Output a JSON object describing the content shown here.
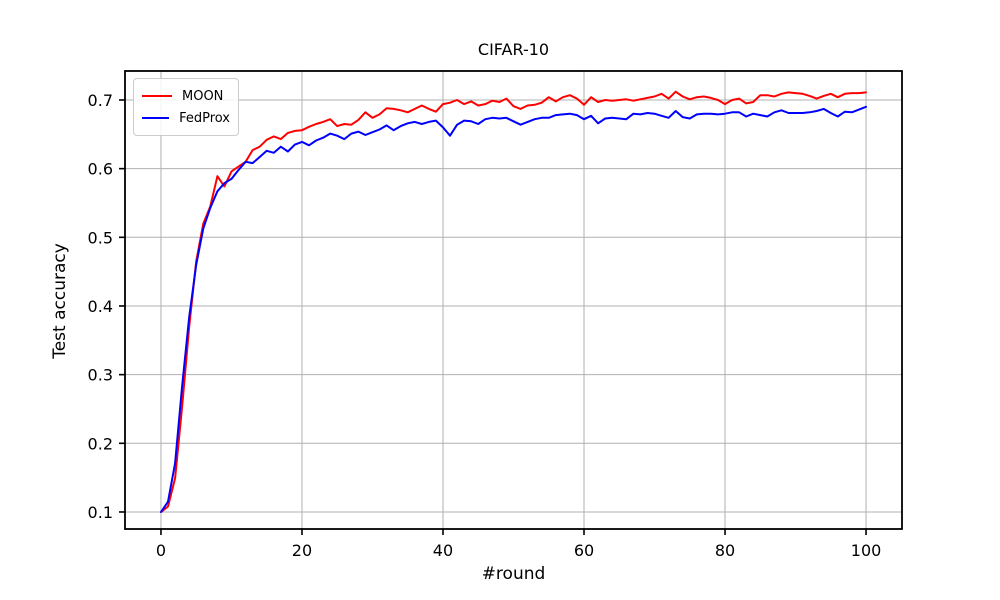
{
  "title": "CIFAR-10",
  "style": {
    "background": "#ffffff",
    "grid_color": "#b0b0b0",
    "spine_color": "#000000",
    "tick_label_size": 16,
    "moon_color": "#ff0000",
    "fedprox_color": "#0000ff"
  },
  "legend": {
    "items": [
      {
        "label": "MOON",
        "color": "#ff0000"
      },
      {
        "label": "FedProx",
        "color": "#0000ff"
      }
    ]
  },
  "chart_data": {
    "type": "line",
    "title": "CIFAR-10",
    "xlabel": "#round",
    "ylabel": "Test accuracy",
    "grid": true,
    "legend_position": "upper left",
    "xticks": [
      0,
      20,
      40,
      60,
      80,
      100
    ],
    "yticks": [
      0.1,
      0.2,
      0.3,
      0.4,
      0.5,
      0.6,
      0.7
    ],
    "xlim": [
      -5.1,
      105.1
    ],
    "ylim": [
      0.0752,
      0.7422
    ],
    "x": [
      0,
      1,
      2,
      3,
      4,
      5,
      6,
      7,
      8,
      9,
      10,
      11,
      12,
      13,
      14,
      15,
      16,
      17,
      18,
      19,
      20,
      21,
      22,
      23,
      24,
      25,
      26,
      27,
      28,
      29,
      30,
      31,
      32,
      33,
      34,
      35,
      36,
      37,
      38,
      39,
      40,
      41,
      42,
      43,
      44,
      45,
      46,
      47,
      48,
      49,
      50,
      51,
      52,
      53,
      54,
      55,
      56,
      57,
      58,
      59,
      60,
      61,
      62,
      63,
      64,
      65,
      66,
      67,
      68,
      69,
      70,
      71,
      72,
      73,
      74,
      75,
      76,
      77,
      78,
      79,
      80,
      81,
      82,
      83,
      84,
      85,
      86,
      87,
      88,
      89,
      90,
      91,
      92,
      93,
      94,
      95,
      96,
      97,
      98,
      99,
      100
    ],
    "series": [
      {
        "name": "MOON",
        "color": "#ff0000",
        "values": [
          0.1,
          0.108,
          0.149,
          0.253,
          0.37,
          0.465,
          0.52,
          0.545,
          0.589,
          0.574,
          0.596,
          0.603,
          0.61,
          0.627,
          0.632,
          0.642,
          0.647,
          0.643,
          0.652,
          0.655,
          0.656,
          0.661,
          0.665,
          0.668,
          0.672,
          0.662,
          0.665,
          0.664,
          0.671,
          0.682,
          0.674,
          0.679,
          0.688,
          0.687,
          0.685,
          0.682,
          0.687,
          0.692,
          0.687,
          0.683,
          0.694,
          0.696,
          0.7,
          0.694,
          0.698,
          0.692,
          0.694,
          0.699,
          0.697,
          0.702,
          0.691,
          0.687,
          0.692,
          0.693,
          0.696,
          0.704,
          0.698,
          0.704,
          0.707,
          0.702,
          0.693,
          0.704,
          0.697,
          0.7,
          0.699,
          0.7,
          0.701,
          0.699,
          0.701,
          0.703,
          0.705,
          0.709,
          0.702,
          0.712,
          0.705,
          0.701,
          0.704,
          0.705,
          0.703,
          0.7,
          0.694,
          0.7,
          0.702,
          0.695,
          0.697,
          0.707,
          0.707,
          0.705,
          0.709,
          0.711,
          0.71,
          0.709,
          0.706,
          0.702,
          0.706,
          0.709,
          0.704,
          0.709,
          0.71,
          0.71,
          0.711
        ]
      },
      {
        "name": "FedProx",
        "color": "#0000ff",
        "values": [
          0.1,
          0.115,
          0.171,
          0.283,
          0.384,
          0.46,
          0.513,
          0.543,
          0.567,
          0.579,
          0.585,
          0.598,
          0.61,
          0.608,
          0.617,
          0.626,
          0.623,
          0.632,
          0.625,
          0.635,
          0.639,
          0.634,
          0.641,
          0.645,
          0.651,
          0.648,
          0.643,
          0.651,
          0.654,
          0.649,
          0.653,
          0.657,
          0.663,
          0.656,
          0.662,
          0.666,
          0.668,
          0.665,
          0.668,
          0.67,
          0.66,
          0.648,
          0.664,
          0.67,
          0.669,
          0.665,
          0.672,
          0.674,
          0.673,
          0.674,
          0.669,
          0.664,
          0.668,
          0.672,
          0.674,
          0.674,
          0.678,
          0.679,
          0.68,
          0.678,
          0.672,
          0.677,
          0.666,
          0.673,
          0.674,
          0.673,
          0.672,
          0.68,
          0.679,
          0.681,
          0.68,
          0.677,
          0.674,
          0.684,
          0.675,
          0.673,
          0.679,
          0.68,
          0.68,
          0.679,
          0.68,
          0.682,
          0.682,
          0.676,
          0.68,
          0.678,
          0.676,
          0.682,
          0.685,
          0.681,
          0.681,
          0.681,
          0.682,
          0.684,
          0.687,
          0.681,
          0.676,
          0.683,
          0.682,
          0.686,
          0.69
        ]
      }
    ]
  }
}
